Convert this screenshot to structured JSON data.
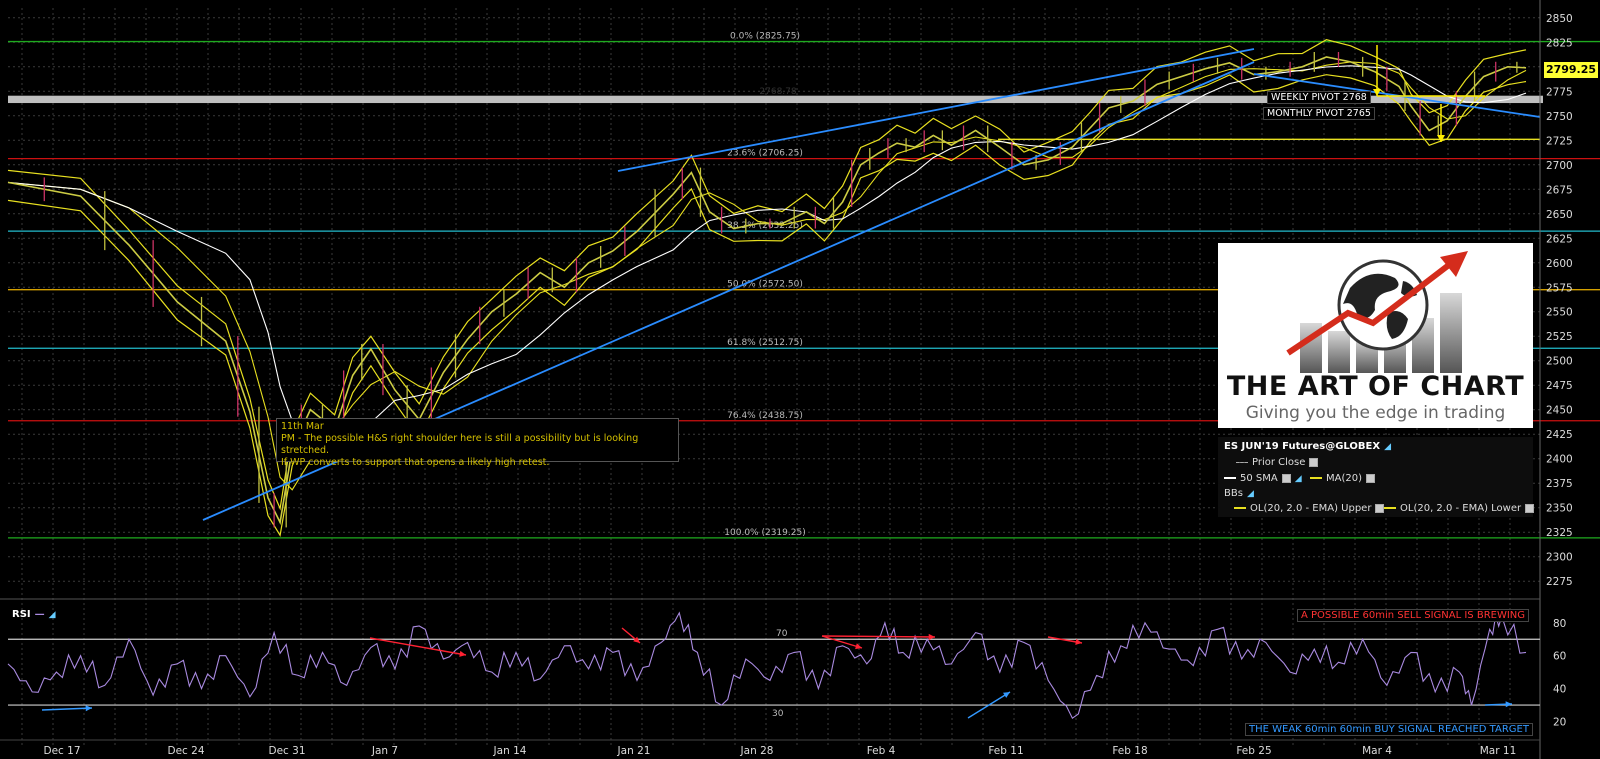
{
  "chart_data": {
    "type": "line",
    "instrument": "ES JUN'19 Futures@GLOBEX",
    "price_axis": {
      "ticks": [
        2850,
        2825,
        2800,
        2775,
        2750,
        2725,
        2700,
        2675,
        2650,
        2625,
        2600,
        2575,
        2550,
        2525,
        2500,
        2475,
        2450,
        2425,
        2400,
        2375,
        2350,
        2325,
        2300,
        2275
      ],
      "ylim": [
        2265,
        2860
      ]
    },
    "x_axis": {
      "ticks": [
        "Dec 17",
        "Dec 24",
        "Dec 31",
        "Jan 7",
        "Jan 14",
        "Jan 21",
        "Jan 28",
        "Feb 4",
        "Feb 11",
        "Feb 18",
        "Feb 25",
        "Mar 4",
        "Mar 11"
      ]
    },
    "last_price": "2799.25",
    "fib_levels": [
      {
        "label": "0.0% (2825.75)",
        "value": 2825.75,
        "color": "#1faa1f"
      },
      {
        "label": "23.6% (2706.25)",
        "value": 2706.25,
        "color": "#cc1111"
      },
      {
        "label": "38.2% (2632.25)",
        "value": 2632.25,
        "color": "#22bbcc"
      },
      {
        "label": "50.0% (2572.50)",
        "value": 2572.5,
        "color": "#d4a000"
      },
      {
        "label": "61.8% (2512.75)",
        "value": 2512.75,
        "color": "#22bbcc"
      },
      {
        "label": "76.4% (2438.75)",
        "value": 2438.75,
        "color": "#cc1111"
      },
      {
        "label": "100.0% (2319.25)",
        "value": 2319.25,
        "color": "#1faa1f"
      }
    ],
    "pivot_band_label": "2768.78",
    "pivots": [
      "WEEKLY PIVOT 2768",
      "MONTHLY PIVOT 2765"
    ],
    "support_line": 2726,
    "price_series": [
      [
        0,
        2682
      ],
      [
        6,
        2668
      ],
      [
        10,
        2618
      ],
      [
        14,
        2560
      ],
      [
        18,
        2520
      ],
      [
        20,
        2448
      ],
      [
        21.5,
        2360
      ],
      [
        22.5,
        2335
      ],
      [
        23.5,
        2410
      ],
      [
        25,
        2450
      ],
      [
        27,
        2430
      ],
      [
        28.5,
        2485
      ],
      [
        30,
        2512
      ],
      [
        32,
        2470
      ],
      [
        34,
        2440
      ],
      [
        36,
        2488
      ],
      [
        38,
        2522
      ],
      [
        40,
        2550
      ],
      [
        42,
        2568
      ],
      [
        44,
        2590
      ],
      [
        46,
        2575
      ],
      [
        48,
        2600
      ],
      [
        50,
        2612
      ],
      [
        52,
        2632
      ],
      [
        55,
        2670
      ],
      [
        56.5,
        2692
      ],
      [
        58,
        2652
      ],
      [
        60,
        2635
      ],
      [
        62,
        2640
      ],
      [
        64,
        2640
      ],
      [
        66,
        2652
      ],
      [
        67.5,
        2640
      ],
      [
        69,
        2662
      ],
      [
        70.5,
        2700
      ],
      [
        72,
        2712
      ],
      [
        73.5,
        2722
      ],
      [
        75,
        2718
      ],
      [
        76.5,
        2730
      ],
      [
        78,
        2720
      ],
      [
        80,
        2735
      ],
      [
        82,
        2718
      ],
      [
        84,
        2700
      ],
      [
        86,
        2705
      ],
      [
        88,
        2718
      ],
      [
        89.5,
        2738
      ],
      [
        91,
        2758
      ],
      [
        93,
        2765
      ],
      [
        95,
        2782
      ],
      [
        97,
        2790
      ],
      [
        99,
        2798
      ],
      [
        101,
        2804
      ],
      [
        103,
        2792
      ],
      [
        105,
        2795
      ],
      [
        107,
        2800
      ],
      [
        109,
        2810
      ],
      [
        111,
        2805
      ],
      [
        113,
        2795
      ],
      [
        115,
        2780
      ],
      [
        116,
        2760
      ],
      [
        117.5,
        2735
      ],
      [
        119,
        2745
      ],
      [
        120.5,
        2770
      ],
      [
        122,
        2790
      ],
      [
        124,
        2800
      ],
      [
        125.5,
        2799
      ]
    ],
    "rsi": {
      "label": "RSI",
      "levels": [
        70,
        30
      ],
      "ticks": [
        80,
        60,
        40,
        20
      ],
      "ylim": [
        10,
        92
      ],
      "values": [
        [
          0,
          55
        ],
        [
          2,
          38
        ],
        [
          4,
          50
        ],
        [
          6,
          60
        ],
        [
          8,
          42
        ],
        [
          10,
          70
        ],
        [
          12,
          36
        ],
        [
          14,
          55
        ],
        [
          16,
          40
        ],
        [
          18,
          60
        ],
        [
          20,
          35
        ],
        [
          22,
          74
        ],
        [
          24,
          48
        ],
        [
          26,
          62
        ],
        [
          28,
          42
        ],
        [
          30,
          65
        ],
        [
          32,
          52
        ],
        [
          34,
          78
        ],
        [
          36,
          58
        ],
        [
          38,
          68
        ],
        [
          40,
          50
        ],
        [
          42,
          62
        ],
        [
          44,
          46
        ],
        [
          46,
          66
        ],
        [
          48,
          52
        ],
        [
          50,
          62
        ],
        [
          52,
          45
        ],
        [
          54,
          68
        ],
        [
          55.5,
          86
        ],
        [
          57,
          62
        ],
        [
          59,
          30
        ],
        [
          61,
          58
        ],
        [
          63,
          45
        ],
        [
          65,
          62
        ],
        [
          67,
          40
        ],
        [
          69,
          66
        ],
        [
          71,
          55
        ],
        [
          72.5,
          80
        ],
        [
          74,
          62
        ],
        [
          76,
          70
        ],
        [
          78,
          55
        ],
        [
          80,
          74
        ],
        [
          82,
          50
        ],
        [
          84,
          68
        ],
        [
          86,
          45
        ],
        [
          88,
          22
        ],
        [
          90,
          48
        ],
        [
          92,
          66
        ],
        [
          94,
          80
        ],
        [
          96,
          64
        ],
        [
          98,
          54
        ],
        [
          100,
          76
        ],
        [
          102,
          58
        ],
        [
          104,
          68
        ],
        [
          106,
          50
        ],
        [
          108,
          64
        ],
        [
          110,
          56
        ],
        [
          112,
          70
        ],
        [
          114,
          42
        ],
        [
          116,
          62
        ],
        [
          118,
          38
        ],
        [
          120,
          50
        ],
        [
          121,
          30
        ],
        [
          122.5,
          76
        ],
        [
          123.5,
          84
        ],
        [
          125.5,
          62
        ]
      ]
    },
    "annotations": {
      "sell_signal": "A POSSIBLE 60min SELL SIGNAL IS BREWING",
      "buy_signal": "THE WEAK 60min 60min BUY SIGNAL REACHED TARGET",
      "rsi_70": "70",
      "rsi_30": "30"
    }
  },
  "note": {
    "line1": "11th Mar",
    "line2": "PM - The possible H&S right shoulder here is still a possibility but is looking stretched.",
    "line3": "If WP converts to support that opens a likely high retest."
  },
  "logo": {
    "title": "THE ART OF CHART",
    "subtitle": "Giving you the edge in trading"
  },
  "legend": {
    "title": "ES JUN'19 Futures@GLOBEX",
    "prior_close": "Prior Close",
    "sma50": "50 SMA",
    "ma20": "MA(20)",
    "bbs": "BBs",
    "upper": "OL(20, 2.0 - EMA) Upper",
    "lower": "OL(20, 2.0 - EMA) Lower"
  },
  "colors": {
    "price": "#cccc44",
    "bands": "#e8e020",
    "ma": "#ffffff",
    "trend": "#2a8cff",
    "rsi": "#a98ae0",
    "grid": "#3a3a3a"
  }
}
